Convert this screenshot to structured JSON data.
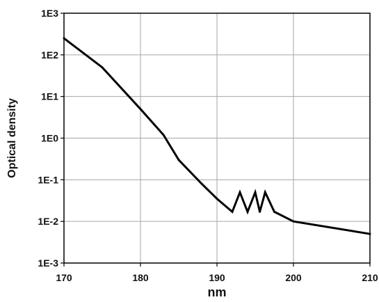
{
  "chart_data": {
    "type": "line",
    "title": "",
    "xlabel": "nm",
    "ylabel": "Optical density",
    "xlim": [
      170,
      210
    ],
    "ylim": [
      0.001,
      1000
    ],
    "yscale": "log",
    "grid": true,
    "x_ticks": [
      170,
      180,
      190,
      200,
      210
    ],
    "x_tick_labels": [
      "170",
      "180",
      "190",
      "200",
      "210"
    ],
    "y_ticks": [
      0.001,
      0.01,
      0.1,
      1,
      10,
      100,
      1000
    ],
    "y_tick_labels": [
      "1E-3",
      "1E-2",
      "1E-1",
      "1E0",
      "1E1",
      "1E2",
      "1E3"
    ],
    "series": [
      {
        "color": "#000000",
        "x": [
          170,
          175,
          180,
          183,
          185,
          188,
          190,
          192,
          193,
          194,
          195,
          195.6,
          196.3,
          197.5,
          200,
          210
        ],
        "y": [
          250,
          50,
          5,
          1.2,
          0.3,
          0.08,
          0.035,
          0.017,
          0.05,
          0.017,
          0.05,
          0.017,
          0.05,
          0.017,
          0.01,
          0.005
        ]
      }
    ]
  }
}
